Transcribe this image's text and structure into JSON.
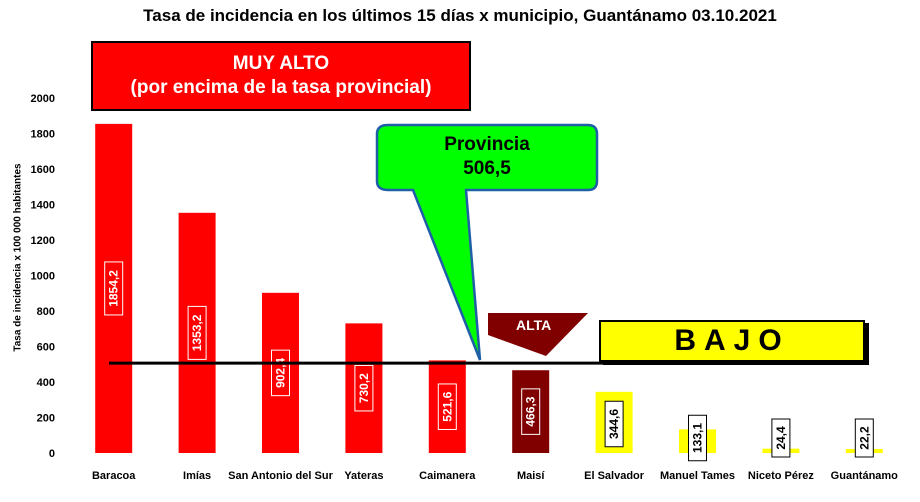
{
  "title": "Tasa de incidencia en los últimos 15 días x municipio, Guantánamo 03.10.2021",
  "muy_alto": {
    "line1": "MUY ALTO",
    "line2": "(por encima de la tasa provincial)",
    "color": "#ff0000"
  },
  "callout": {
    "line1": "Provincia",
    "line2": "506,5",
    "color": "#00ff00"
  },
  "alta": {
    "label": "ALTA",
    "color": "#800000"
  },
  "bajo": {
    "label": "BAJO",
    "color": "#ffff00"
  },
  "chart_data": {
    "type": "bar",
    "title": "Tasa de incidencia en los últimos 15 días x municipio, Guantánamo 03.10.2021",
    "xlabel": "",
    "ylabel": "Tasa de incidencia  x 100 000 habitantes",
    "ylim": [
      0,
      2000
    ],
    "yticks": [
      0,
      200,
      400,
      600,
      800,
      1000,
      1200,
      1400,
      1600,
      1800,
      2000
    ],
    "grid": false,
    "reference_line": {
      "value": 506.5,
      "label": "Provincia 506,5"
    },
    "categories": [
      "Baracoa",
      "Imías",
      "San Antonio del Sur",
      "Yateras",
      "Caimanera",
      "Maisí",
      "El Salvador",
      "Manuel Tames",
      "Niceto Pérez",
      "Guantánamo"
    ],
    "values": [
      1854.2,
      1353.2,
      902.4,
      730.2,
      521.6,
      466.3,
      344.6,
      133.1,
      24.4,
      22.2
    ],
    "value_labels": [
      "1854,2",
      "1353,2",
      "902,4",
      "730,2",
      "521,6",
      "466,3",
      "344,6",
      "133,1",
      "24,4",
      "22,2"
    ],
    "bar_colors": [
      "#ff0000",
      "#ff0000",
      "#ff0000",
      "#ff0000",
      "#ff0000",
      "#800000",
      "#ffff00",
      "#ffff00",
      "#ffff00",
      "#ffff00"
    ],
    "label_styles": [
      "red",
      "red",
      "red",
      "red",
      "red",
      "dark",
      "yellow",
      "yellow",
      "yellow",
      "yellow"
    ]
  }
}
